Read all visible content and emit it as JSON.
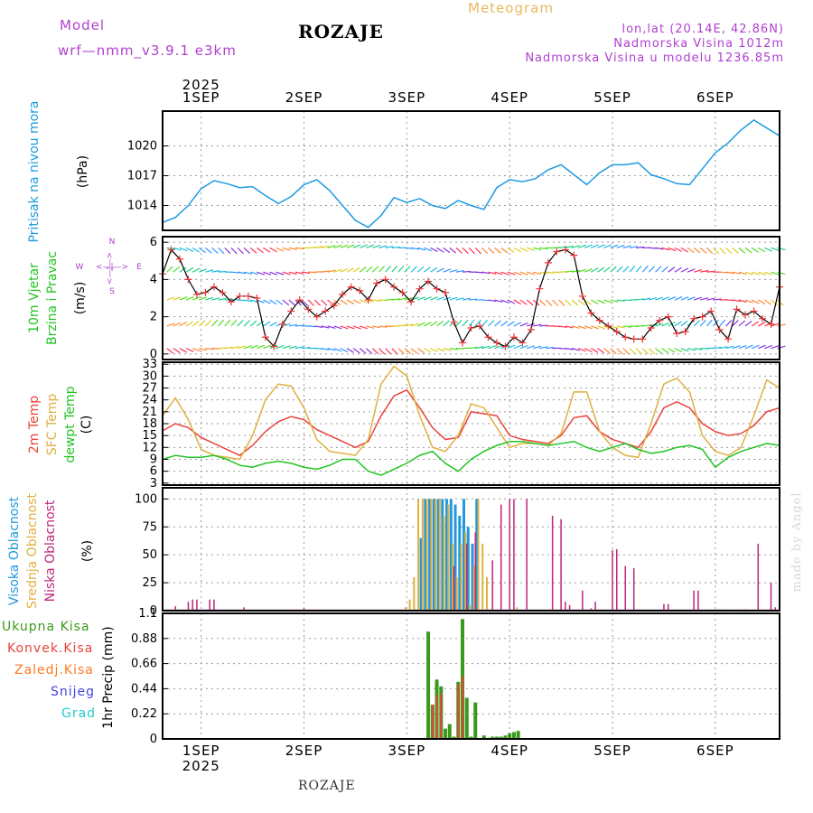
{
  "header": {
    "model_label": "Model",
    "model_name": "wrf—nmm_v3.9.1  e3km",
    "station": "ROZAJE",
    "title": "Meteogram",
    "lonlat": "lon,lat (20.14E, 42.86N)",
    "altitude": "Nadmorska Visina 1012m",
    "model_altitude": "Nadmorska Visina u modelu 1236.85m"
  },
  "footer": {
    "station": "ROZAJE",
    "watermark": "made by Angel"
  },
  "colors": {
    "pressure": "#1e9be0",
    "speed": "#000000",
    "speed_marker": "#ee3333",
    "temp2m": "#e8433a",
    "sfc_temp": "#e0b040",
    "dewpt": "#22c422",
    "high_cloud": "#2299dd",
    "mid_cloud": "#e0b040",
    "low_cloud": "#c0267a",
    "total_precip": "#3a9a1a",
    "conv_precip": "#e8433a",
    "frozen_precip": "#ff7722",
    "snow": "#4444dd",
    "hail": "#22cccc",
    "purple_text": "#b040d0",
    "gold_text": "#e8b860"
  },
  "time_axis": {
    "top_year": "2025",
    "bottom_year": "2025",
    "days": [
      "1SEP",
      "2SEP",
      "3SEP",
      "4SEP",
      "5SEP",
      "6SEP"
    ],
    "start_hour": -9,
    "end_hour": 135
  },
  "panels": {
    "pressure": {
      "label": "Pritisak na nivou mora",
      "unit": "(hPa)"
    },
    "wind": {
      "label_line1": "10m Vjetar",
      "label_line2": "Brzina i Pravac",
      "unit": "(m/s)",
      "compass": {
        "n": "N",
        "s": "S",
        "e": "E",
        "w": "W",
        "arrow_h": "<—|—>",
        "arrow_v": "<—|—>"
      }
    },
    "temp": {
      "label_2m": "2m Temp",
      "label_sfc": "SFC Temp",
      "label_dew": "dewpt Temp",
      "unit": "(C)"
    },
    "cloud": {
      "label_high": "Visoka Oblacnost",
      "label_mid": "Srednja Oblacnost",
      "label_low": "Niska Oblacnost",
      "unit": "(%)"
    },
    "precip": {
      "unit_label": "1hr Precip (mm)",
      "legend": [
        "Ukupna Kisa",
        "Konvek.Kisa",
        "Zaledj.Kisa",
        "Snijeg",
        "Grad"
      ]
    }
  },
  "chart_data": [
    {
      "type": "line",
      "title": "Pritisak na nivou mora",
      "ylabel": "(hPa)",
      "ylim": [
        1011.5,
        1023.5
      ],
      "yticks": [
        1014,
        1017,
        1020
      ],
      "series": [
        {
          "name": "Pressure",
          "x": [
            -9,
            -6,
            -3,
            0,
            3,
            6,
            9,
            12,
            15,
            18,
            21,
            24,
            27,
            30,
            33,
            36,
            39,
            42,
            45,
            48,
            51,
            54,
            57,
            60,
            63,
            66,
            69,
            72,
            75,
            78,
            81,
            84,
            87,
            90,
            93,
            96,
            99,
            102,
            105,
            108,
            111,
            114,
            117,
            120,
            123,
            126,
            129,
            132,
            135
          ],
          "y": [
            1012.3,
            1012.8,
            1014.0,
            1015.7,
            1016.5,
            1016.2,
            1015.8,
            1015.9,
            1015.0,
            1014.2,
            1014.9,
            1016.1,
            1016.6,
            1015.5,
            1014.0,
            1012.5,
            1011.8,
            1013.0,
            1014.8,
            1014.3,
            1014.7,
            1014.0,
            1013.7,
            1014.5,
            1014.0,
            1013.6,
            1015.8,
            1016.6,
            1016.4,
            1016.7,
            1017.6,
            1018.1,
            1017.1,
            1016.1,
            1017.3,
            1018.1,
            1018.1,
            1018.3,
            1017.1,
            1016.7,
            1016.2,
            1016.1,
            1017.7,
            1019.3,
            1020.3,
            1021.6,
            1022.6,
            1021.8,
            1021.0
          ]
        }
      ]
    },
    {
      "type": "line",
      "title": "10m Vjetar Brzina i Pravac",
      "ylabel": "(m/s)",
      "ylim": [
        -0.3,
        6.3
      ],
      "yticks": [
        0,
        2,
        4,
        6
      ],
      "series": [
        {
          "name": "Wind speed",
          "x": [
            -9,
            -7,
            -5,
            -3,
            -1,
            1,
            3,
            5,
            7,
            9,
            11,
            13,
            15,
            17,
            19,
            21,
            23,
            25,
            27,
            29,
            31,
            33,
            35,
            37,
            39,
            41,
            43,
            45,
            47,
            49,
            51,
            53,
            55,
            57,
            59,
            61,
            63,
            65,
            67,
            69,
            71,
            73,
            75,
            77,
            79,
            81,
            83,
            85,
            87,
            89,
            91,
            93,
            95,
            97,
            99,
            101,
            103,
            105,
            107,
            109,
            111,
            113,
            115,
            117,
            119,
            121,
            123,
            125,
            127,
            129,
            131,
            133,
            135
          ],
          "y": [
            4.3,
            5.6,
            5.1,
            4.0,
            3.2,
            3.3,
            3.6,
            3.3,
            2.8,
            3.1,
            3.1,
            3.0,
            0.9,
            0.4,
            1.6,
            2.3,
            2.9,
            2.4,
            2.0,
            2.3,
            2.6,
            3.2,
            3.6,
            3.4,
            2.9,
            3.8,
            4.0,
            3.6,
            3.3,
            2.8,
            3.5,
            3.9,
            3.5,
            3.3,
            1.7,
            0.6,
            1.4,
            1.5,
            0.9,
            0.6,
            0.4,
            0.9,
            0.6,
            1.3,
            3.5,
            4.9,
            5.5,
            5.6,
            5.3,
            3.1,
            2.2,
            1.8,
            1.5,
            1.2,
            0.9,
            0.8,
            0.8,
            1.4,
            1.8,
            2.0,
            1.1,
            1.2,
            1.9,
            2.0,
            2.3,
            1.3,
            0.8,
            2.4,
            2.1,
            2.3,
            1.9,
            1.6,
            3.6
          ]
        }
      ]
    },
    {
      "type": "line",
      "title": "Temperature",
      "ylabel": "(C)",
      "ylim": [
        2.5,
        33.5
      ],
      "yticks": [
        3,
        6,
        9,
        12,
        15,
        18,
        21,
        24,
        27,
        30,
        33
      ],
      "x": [
        -9,
        -6,
        -3,
        0,
        3,
        6,
        9,
        12,
        15,
        18,
        21,
        24,
        27,
        30,
        33,
        36,
        39,
        42,
        45,
        48,
        51,
        54,
        57,
        60,
        63,
        66,
        69,
        72,
        75,
        78,
        81,
        84,
        87,
        90,
        93,
        96,
        99,
        102,
        105,
        108,
        111,
        114,
        117,
        120,
        123,
        126,
        129,
        132,
        135
      ],
      "series": [
        {
          "name": "2m Temp",
          "values": [
            16.2,
            18.0,
            17.0,
            14.5,
            13.0,
            11.5,
            10.0,
            12.5,
            16.0,
            18.5,
            19.8,
            19.0,
            16.5,
            15.0,
            13.5,
            12.0,
            13.5,
            20.0,
            25.0,
            26.5,
            22.0,
            17.0,
            14.0,
            14.5,
            21.0,
            20.5,
            20.0,
            15.0,
            14.0,
            13.5,
            13.0,
            15.0,
            19.5,
            20.0,
            16.0,
            14.0,
            13.0,
            12.0,
            16.0,
            22.0,
            23.5,
            22.0,
            18.0,
            16.0,
            15.0,
            15.5,
            17.5,
            21.0,
            22.0
          ]
        },
        {
          "name": "SFC Temp",
          "values": [
            20.0,
            24.5,
            19.0,
            11.5,
            10.0,
            9.5,
            9.0,
            15.0,
            24.0,
            28.0,
            27.5,
            22.0,
            14.0,
            11.0,
            10.5,
            10.0,
            14.0,
            28.0,
            32.5,
            30.0,
            20.0,
            12.0,
            11.0,
            15.0,
            23.0,
            22.0,
            17.0,
            12.0,
            13.0,
            13.0,
            12.5,
            15.5,
            26.0,
            26.0,
            16.0,
            12.0,
            10.0,
            9.5,
            18.0,
            28.0,
            29.5,
            26.0,
            15.0,
            11.0,
            10.0,
            12.0,
            20.0,
            29.0,
            27.0
          ]
        },
        {
          "name": "dewpt Temp",
          "values": [
            9.0,
            10.0,
            9.5,
            9.5,
            10.0,
            9.0,
            7.5,
            7.0,
            8.0,
            8.5,
            8.0,
            7.0,
            6.5,
            7.5,
            9.0,
            9.0,
            6.0,
            5.0,
            6.5,
            8.0,
            10.0,
            11.0,
            8.0,
            6.0,
            9.0,
            11.0,
            12.5,
            13.5,
            13.5,
            13.0,
            12.5,
            13.0,
            13.5,
            12.0,
            11.0,
            12.0,
            13.0,
            11.5,
            10.5,
            11.0,
            12.0,
            12.5,
            11.5,
            7.0,
            9.5,
            11.0,
            12.0,
            13.0,
            12.5
          ]
        }
      ]
    },
    {
      "type": "bar",
      "title": "Cloud cover",
      "ylabel": "(%)",
      "ylim": [
        0,
        110
      ],
      "yticks": [
        0,
        25,
        50,
        75,
        100
      ],
      "series": [
        {
          "name": "Visoka Oblacnost",
          "x": [
            51,
            52,
            53,
            54,
            55,
            56,
            57,
            58,
            59,
            60,
            61,
            62,
            63,
            64
          ],
          "values": [
            65,
            100,
            100,
            100,
            100,
            100,
            100,
            100,
            95,
            85,
            100,
            75,
            60,
            100
          ]
        },
        {
          "name": "Srednja Oblacnost",
          "x": [
            48,
            49,
            50,
            51,
            52,
            53,
            54,
            55,
            56,
            57,
            58,
            59,
            60,
            61,
            62,
            63,
            64,
            65,
            66,
            67,
            74
          ],
          "values": [
            3,
            10,
            30,
            100,
            100,
            100,
            100,
            100,
            100,
            85,
            95,
            60,
            30,
            60,
            70,
            5,
            40,
            100,
            60,
            30,
            3
          ]
        },
        {
          "name": "Niska Oblacnost",
          "x": [
            -6,
            -3,
            -2,
            -1,
            2,
            3,
            10,
            24,
            59,
            62,
            64,
            68,
            70,
            72,
            73,
            76,
            82,
            84,
            85,
            86,
            89,
            91,
            92,
            96,
            97,
            99,
            101,
            102,
            108,
            109,
            115,
            116,
            121,
            122,
            126,
            127,
            130,
            133,
            134
          ],
          "values": [
            4,
            8,
            10,
            10,
            10,
            10,
            3,
            2,
            40,
            60,
            70,
            45,
            95,
            100,
            100,
            100,
            85,
            82,
            8,
            5,
            18,
            2,
            8,
            54,
            55,
            40,
            38,
            1,
            6,
            6,
            18,
            18,
            1,
            1,
            1,
            1,
            60,
            25,
            3
          ]
        }
      ]
    },
    {
      "type": "bar",
      "title": "1hr Precip",
      "ylabel": "1hr Precip (mm)",
      "ylim": [
        0,
        1.1
      ],
      "yticks": [
        0,
        0.22,
        0.44,
        0.66,
        0.88,
        1.1
      ],
      "series": [
        {
          "name": "Ukupna Kisa",
          "x": [
            53,
            54,
            55,
            56,
            57,
            58,
            59,
            60,
            61,
            62,
            63,
            64,
            66,
            67,
            68,
            69,
            70,
            71,
            72,
            73,
            74
          ],
          "values": [
            0.94,
            0.3,
            0.52,
            0.46,
            0.09,
            0.13,
            0.02,
            0.5,
            1.05,
            0.36,
            0.02,
            0.32,
            0.03,
            0.01,
            0.02,
            0.02,
            0.02,
            0.03,
            0.05,
            0.06,
            0.07
          ]
        },
        {
          "name": "Konvek.Kisa",
          "x": [
            54,
            55,
            56,
            60,
            61
          ],
          "values": [
            0.3,
            0.38,
            0.4,
            0.48,
            0.55
          ]
        }
      ]
    }
  ]
}
